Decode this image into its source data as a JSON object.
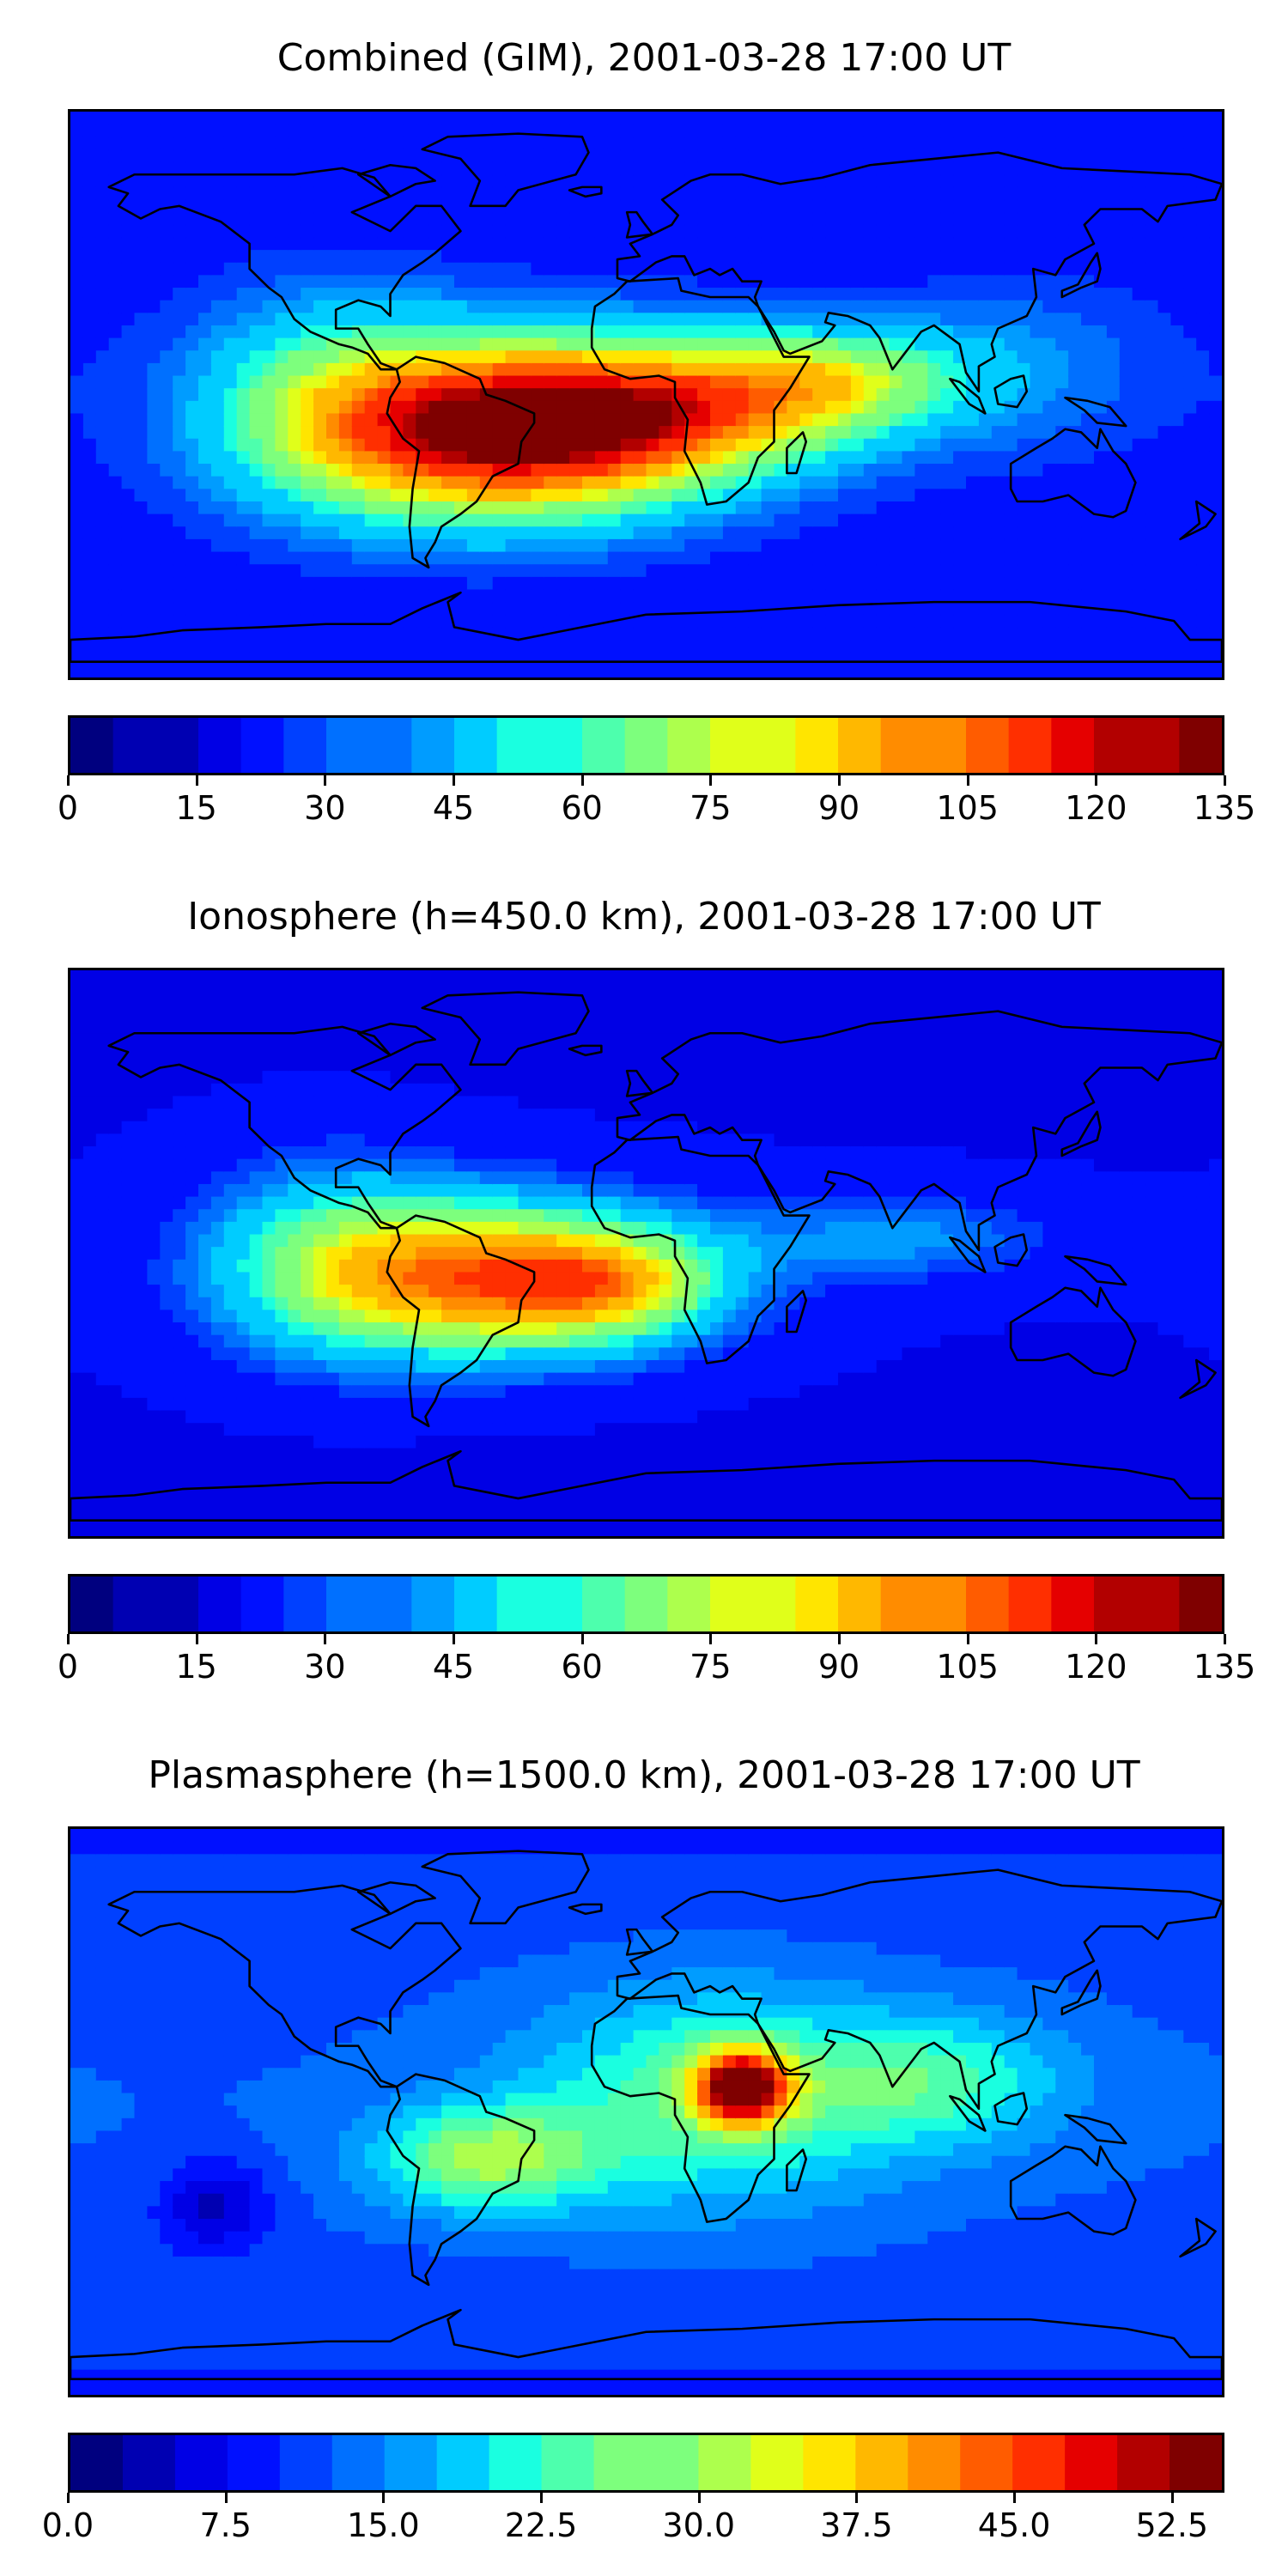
{
  "palette": [
    "#00007f",
    "#0000b2",
    "#0000e5",
    "#0010ff",
    "#0040ff",
    "#0070ff",
    "#009cff",
    "#00ccff",
    "#1affe0",
    "#4dffad",
    "#7dff7d",
    "#adff4d",
    "#e0ff1a",
    "#ffe500",
    "#ffb800",
    "#ff8c00",
    "#ff5c00",
    "#ff2f00",
    "#e50000",
    "#b20000",
    "#7f0000"
  ],
  "chart_data": [
    {
      "type": "heatmap",
      "title": "Combined (GIM), 2001-03-28 17:00 UT",
      "colorbar": {
        "range": [
          0,
          135
        ],
        "levels": 27,
        "ticks": [
          0,
          15,
          30,
          45,
          60,
          75,
          90,
          105,
          120,
          135
        ],
        "tick_labels": [
          "0",
          "15",
          "30",
          "45",
          "60",
          "75",
          "90",
          "105",
          "120",
          "135"
        ]
      },
      "field": {
        "background": 27,
        "blobs": [
          {
            "lon": -45,
            "lat": -12,
            "amp": 100,
            "slon": 45,
            "slat": 20
          },
          {
            "lon": 10,
            "lat": -5,
            "amp": 50,
            "slon": 40,
            "slat": 15
          },
          {
            "lon": 60,
            "lat": 5,
            "amp": 40,
            "slon": 30,
            "slat": 12
          },
          {
            "lon": -100,
            "lat": 0,
            "amp": 25,
            "slon": 30,
            "slat": 25
          },
          {
            "lon": 120,
            "lat": 10,
            "amp": 12,
            "slon": 30,
            "slat": 20
          }
        ]
      }
    },
    {
      "type": "heatmap",
      "title": "Ionosphere  (h=450.0 km), 2001-03-28 17:00 UT",
      "colorbar": {
        "range": [
          0,
          135
        ],
        "levels": 27,
        "ticks": [
          0,
          15,
          30,
          45,
          60,
          75,
          90,
          105,
          120,
          135
        ],
        "tick_labels": [
          "0",
          "15",
          "30",
          "45",
          "60",
          "75",
          "90",
          "105",
          "120",
          "135"
        ]
      },
      "field": {
        "background": 20,
        "blobs": [
          {
            "lon": -50,
            "lat": -8,
            "amp": 78,
            "slon": 45,
            "slat": 18
          },
          {
            "lon": -10,
            "lat": -10,
            "amp": 35,
            "slon": 25,
            "slat": 12
          },
          {
            "lon": -100,
            "lat": 0,
            "amp": 25,
            "slon": 30,
            "slat": 25
          },
          {
            "lon": 80,
            "lat": 5,
            "amp": 22,
            "slon": 35,
            "slat": 10
          }
        ]
      }
    },
    {
      "type": "heatmap",
      "title": "Plasmasphere (h=1500.0 km), 2001-03-28 17:00 UT",
      "colorbar": {
        "range": [
          0,
          55
        ],
        "levels": 22,
        "ticks": [
          0,
          7.5,
          15,
          22.5,
          30,
          37.5,
          45,
          52.5
        ],
        "tick_labels": [
          "0.0",
          "7.5",
          "15.0",
          "22.5",
          "30.0",
          "37.5",
          "45.0",
          "52.5"
        ]
      },
      "field": {
        "background": 15,
        "blobs": [
          {
            "lon": 30,
            "lat": 8,
            "amp": 36,
            "slon": 10,
            "slat": 8
          },
          {
            "lon": 20,
            "lat": 5,
            "amp": 12,
            "slon": 40,
            "slat": 25
          },
          {
            "lon": -50,
            "lat": -15,
            "amp": 15,
            "slon": 25,
            "slat": 12
          },
          {
            "lon": 90,
            "lat": 10,
            "amp": 10,
            "slon": 30,
            "slat": 15
          },
          {
            "lon": -135,
            "lat": -30,
            "amp": -8,
            "slon": 12,
            "slat": 10
          }
        ]
      }
    }
  ],
  "continents": [
    {
      "name": "north-america",
      "points": [
        [
          -168,
          66
        ],
        [
          -160,
          70
        ],
        [
          -140,
          70
        ],
        [
          -125,
          70
        ],
        [
          -110,
          70
        ],
        [
          -95,
          72
        ],
        [
          -85,
          69
        ],
        [
          -80,
          63
        ],
        [
          -92,
          58
        ],
        [
          -80,
          52
        ],
        [
          -72,
          60
        ],
        [
          -64,
          60
        ],
        [
          -58,
          52
        ],
        [
          -66,
          45
        ],
        [
          -70,
          42
        ],
        [
          -76,
          38
        ],
        [
          -80,
          32
        ],
        [
          -80,
          25
        ],
        [
          -83,
          28
        ],
        [
          -90,
          30
        ],
        [
          -97,
          27
        ],
        [
          -97,
          21
        ],
        [
          -90,
          21
        ],
        [
          -87,
          16
        ],
        [
          -83,
          10
        ],
        [
          -78,
          8
        ],
        [
          -83,
          8
        ],
        [
          -87,
          13
        ],
        [
          -92,
          15
        ],
        [
          -96,
          16
        ],
        [
          -105,
          20
        ],
        [
          -110,
          24
        ],
        [
          -114,
          31
        ],
        [
          -118,
          34
        ],
        [
          -124,
          40
        ],
        [
          -124,
          48
        ],
        [
          -133,
          55
        ],
        [
          -146,
          60
        ],
        [
          -152,
          59
        ],
        [
          -158,
          56
        ],
        [
          -165,
          60
        ],
        [
          -162,
          64
        ]
      ]
    },
    {
      "name": "greenland",
      "points": [
        [
          -55,
          60
        ],
        [
          -44,
          60
        ],
        [
          -40,
          65
        ],
        [
          -22,
          70
        ],
        [
          -18,
          77
        ],
        [
          -20,
          82
        ],
        [
          -40,
          83
        ],
        [
          -62,
          82
        ],
        [
          -70,
          78
        ],
        [
          -58,
          75
        ],
        [
          -52,
          68
        ]
      ]
    },
    {
      "name": "south-america",
      "points": [
        [
          -78,
          8
        ],
        [
          -72,
          12
        ],
        [
          -63,
          10
        ],
        [
          -52,
          5
        ],
        [
          -50,
          0
        ],
        [
          -44,
          -2
        ],
        [
          -35,
          -6
        ],
        [
          -35,
          -9
        ],
        [
          -39,
          -15
        ],
        [
          -40,
          -22
        ],
        [
          -48,
          -26
        ],
        [
          -53,
          -34
        ],
        [
          -58,
          -38
        ],
        [
          -64,
          -42
        ],
        [
          -66,
          -47
        ],
        [
          -69,
          -52
        ],
        [
          -68,
          -55
        ],
        [
          -73,
          -52
        ],
        [
          -74,
          -42
        ],
        [
          -73,
          -30
        ],
        [
          -71,
          -18
        ],
        [
          -76,
          -14
        ],
        [
          -81,
          -6
        ],
        [
          -80,
          -1
        ],
        [
          -77,
          4
        ]
      ]
    },
    {
      "name": "africa",
      "points": [
        [
          -17,
          21
        ],
        [
          -16,
          28
        ],
        [
          -10,
          32
        ],
        [
          -6,
          36
        ],
        [
          10,
          37
        ],
        [
          11,
          33
        ],
        [
          20,
          31
        ],
        [
          32,
          31
        ],
        [
          35,
          28
        ],
        [
          43,
          12
        ],
        [
          51,
          12
        ],
        [
          45,
          2
        ],
        [
          40,
          -5
        ],
        [
          40,
          -15
        ],
        [
          35,
          -20
        ],
        [
          32,
          -28
        ],
        [
          25,
          -34
        ],
        [
          19,
          -35
        ],
        [
          17,
          -28
        ],
        [
          12,
          -18
        ],
        [
          13,
          -8
        ],
        [
          9,
          -1
        ],
        [
          9,
          4
        ],
        [
          4,
          6
        ],
        [
          -5,
          5
        ],
        [
          -13,
          8
        ],
        [
          -17,
          15
        ]
      ]
    },
    {
      "name": "eurasia",
      "points": [
        [
          -9,
          37
        ],
        [
          -9,
          43
        ],
        [
          -2,
          44
        ],
        [
          -5,
          48
        ],
        [
          2,
          51
        ],
        [
          8,
          54
        ],
        [
          10,
          57
        ],
        [
          5,
          62
        ],
        [
          14,
          68
        ],
        [
          20,
          70
        ],
        [
          30,
          70
        ],
        [
          42,
          67
        ],
        [
          55,
          69
        ],
        [
          70,
          73
        ],
        [
          90,
          75
        ],
        [
          110,
          77
        ],
        [
          130,
          72
        ],
        [
          150,
          71
        ],
        [
          170,
          70
        ],
        [
          180,
          67
        ],
        [
          178,
          62
        ],
        [
          163,
          60
        ],
        [
          160,
          55
        ],
        [
          155,
          59
        ],
        [
          142,
          59
        ],
        [
          137,
          54
        ],
        [
          140,
          48
        ],
        [
          131,
          43
        ],
        [
          128,
          38
        ],
        [
          121,
          40
        ],
        [
          122,
          31
        ],
        [
          119,
          25
        ],
        [
          110,
          21
        ],
        [
          108,
          16
        ],
        [
          109,
          12
        ],
        [
          104,
          9
        ],
        [
          104,
          1
        ],
        [
          100,
          7
        ],
        [
          98,
          16
        ],
        [
          94,
          19
        ],
        [
          90,
          22
        ],
        [
          86,
          20
        ],
        [
          80,
          12
        ],
        [
          77,
          8
        ],
        [
          73,
          18
        ],
        [
          70,
          22
        ],
        [
          63,
          25
        ],
        [
          57,
          26
        ],
        [
          56,
          23
        ],
        [
          59,
          22
        ],
        [
          55,
          17
        ],
        [
          45,
          13
        ],
        [
          43,
          14
        ],
        [
          40,
          20
        ],
        [
          35,
          28
        ],
        [
          34,
          31
        ],
        [
          36,
          36
        ],
        [
          30,
          36
        ],
        [
          27,
          40
        ],
        [
          23,
          38
        ],
        [
          20,
          40
        ],
        [
          15,
          38
        ],
        [
          12,
          44
        ],
        [
          8,
          44
        ],
        [
          3,
          42
        ],
        [
          -5,
          36
        ]
      ]
    },
    {
      "name": "australia",
      "points": [
        [
          114,
          -22
        ],
        [
          114,
          -30
        ],
        [
          116,
          -34
        ],
        [
          124,
          -34
        ],
        [
          132,
          -32
        ],
        [
          136,
          -35
        ],
        [
          140,
          -38
        ],
        [
          146,
          -39
        ],
        [
          150,
          -37
        ],
        [
          153,
          -28
        ],
        [
          150,
          -22
        ],
        [
          146,
          -18
        ],
        [
          142,
          -11
        ],
        [
          141,
          -17
        ],
        [
          136,
          -12
        ],
        [
          131,
          -11
        ],
        [
          127,
          -14
        ],
        [
          122,
          -17
        ]
      ]
    },
    {
      "name": "antarctica",
      "points": [
        [
          -180,
          -85
        ],
        [
          -180,
          -78
        ],
        [
          -160,
          -77
        ],
        [
          -145,
          -75
        ],
        [
          -120,
          -74
        ],
        [
          -100,
          -73
        ],
        [
          -80,
          -73
        ],
        [
          -70,
          -68
        ],
        [
          -58,
          -63
        ],
        [
          -62,
          -66
        ],
        [
          -60,
          -74
        ],
        [
          -40,
          -78
        ],
        [
          -20,
          -74
        ],
        [
          0,
          -70
        ],
        [
          30,
          -69
        ],
        [
          60,
          -67
        ],
        [
          90,
          -66
        ],
        [
          120,
          -66
        ],
        [
          150,
          -69
        ],
        [
          165,
          -72
        ],
        [
          170,
          -78
        ],
        [
          180,
          -78
        ],
        [
          180,
          -85
        ]
      ]
    },
    {
      "name": "madagascar",
      "points": [
        [
          44,
          -25
        ],
        [
          47,
          -25
        ],
        [
          50,
          -15
        ],
        [
          49,
          -12
        ],
        [
          44,
          -17
        ]
      ]
    },
    {
      "name": "british-isles",
      "points": [
        [
          -6,
          50
        ],
        [
          2,
          51
        ],
        [
          -1,
          55
        ],
        [
          -3,
          58
        ],
        [
          -6,
          58
        ],
        [
          -5,
          54
        ]
      ]
    },
    {
      "name": "japan",
      "points": [
        [
          130,
          31
        ],
        [
          136,
          34
        ],
        [
          141,
          36
        ],
        [
          142,
          40
        ],
        [
          141,
          45
        ],
        [
          139,
          42
        ],
        [
          135,
          35
        ],
        [
          130,
          33
        ]
      ]
    },
    {
      "name": "new-zealand",
      "points": [
        [
          172,
          -34
        ],
        [
          178,
          -38
        ],
        [
          175,
          -42
        ],
        [
          171,
          -44
        ],
        [
          167,
          -46
        ],
        [
          173,
          -41
        ]
      ]
    },
    {
      "name": "borneo",
      "points": [
        [
          109,
          2
        ],
        [
          114,
          5
        ],
        [
          118,
          6
        ],
        [
          119,
          1
        ],
        [
          116,
          -4
        ],
        [
          110,
          -3
        ]
      ]
    },
    {
      "name": "sumatra",
      "points": [
        [
          95,
          5
        ],
        [
          98,
          4
        ],
        [
          104,
          -1
        ],
        [
          106,
          -6
        ],
        [
          101,
          -3
        ]
      ]
    },
    {
      "name": "new-guinea",
      "points": [
        [
          131,
          -1
        ],
        [
          138,
          -2
        ],
        [
          145,
          -4
        ],
        [
          150,
          -10
        ],
        [
          141,
          -9
        ],
        [
          137,
          -5
        ]
      ]
    },
    {
      "name": "iceland",
      "points": [
        [
          -24,
          65
        ],
        [
          -20,
          66
        ],
        [
          -14,
          66
        ],
        [
          -14,
          64
        ],
        [
          -19,
          63
        ]
      ]
    },
    {
      "name": "baffin-island",
      "points": [
        [
          -80,
          63
        ],
        [
          -72,
          67
        ],
        [
          -66,
          68
        ],
        [
          -72,
          72
        ],
        [
          -80,
          73
        ],
        [
          -90,
          70
        ]
      ]
    }
  ]
}
